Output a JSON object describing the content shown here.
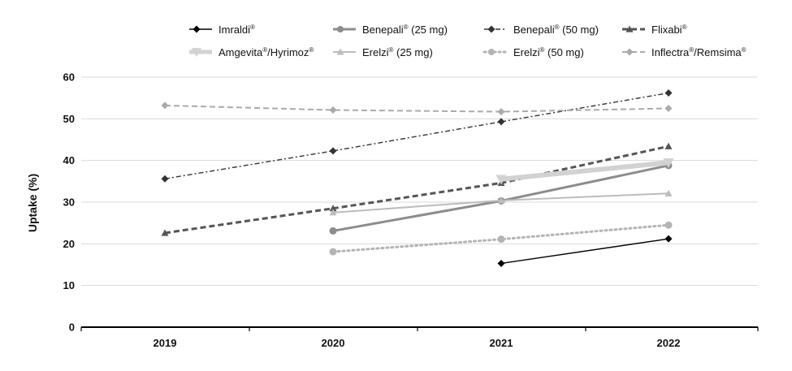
{
  "chart_data": {
    "type": "line",
    "title": "",
    "xlabel": "",
    "ylabel": "Uptake (%)",
    "ylim": [
      0,
      60
    ],
    "yticks": [
      0,
      10,
      20,
      30,
      40,
      50,
      60
    ],
    "categories": [
      "2019",
      "2020",
      "2021",
      "2022"
    ],
    "grid": true,
    "legend_position": "top",
    "series": [
      {
        "name": "Imraldi",
        "mark": "®",
        "color": "#000000",
        "dash": "solid",
        "marker": "diamond",
        "width": "thin",
        "values": [
          null,
          null,
          15.3,
          21.2
        ]
      },
      {
        "name": "Benepali",
        "mark": "®",
        "suffix": " (25 mg)",
        "color": "#8c8c8c",
        "dash": "solid",
        "marker": "circle",
        "width": "thick",
        "values": [
          null,
          23.1,
          30.3,
          38.8
        ]
      },
      {
        "name": "Benepali",
        "mark": "®",
        "suffix": " (50 mg)",
        "color": "#333333",
        "dash": "dashdot",
        "marker": "diamond",
        "width": "thin",
        "values": [
          35.6,
          42.3,
          49.3,
          56.2
        ]
      },
      {
        "name": "Flixabi",
        "mark": "®",
        "color": "#555555",
        "dash": "dashed",
        "marker": "triangle",
        "width": "thick",
        "values": [
          22.6,
          28.5,
          34.6,
          43.4
        ]
      },
      {
        "name": "Amgevita",
        "mark": "®",
        "suffix": "/Hyrimoz",
        "mark2": "®",
        "color": "#d2d2d2",
        "dash": "solid",
        "marker": "triangle-down",
        "width": "xthick",
        "values": [
          null,
          null,
          35.5,
          39.5
        ]
      },
      {
        "name": "Erelzi",
        "mark": "®",
        "suffix": " (25 mg)",
        "color": "#bcbcbc",
        "dash": "solid",
        "marker": "triangle",
        "width": "medium",
        "values": [
          null,
          27.5,
          30.4,
          32.1
        ]
      },
      {
        "name": "Erelzi",
        "mark": "®",
        "suffix": " (50 mg)",
        "color": "#b4b4b4",
        "dash": "dotted",
        "marker": "circle",
        "width": "thick",
        "values": [
          null,
          18.1,
          21.1,
          24.5
        ]
      },
      {
        "name": "Inflectra",
        "mark": "®",
        "suffix": "/Remsima",
        "mark2": "®",
        "color": "#aaaaaa",
        "dash": "dashed",
        "marker": "diamond",
        "width": "medium",
        "values": [
          53.2,
          52.1,
          51.7,
          52.5
        ]
      }
    ]
  }
}
